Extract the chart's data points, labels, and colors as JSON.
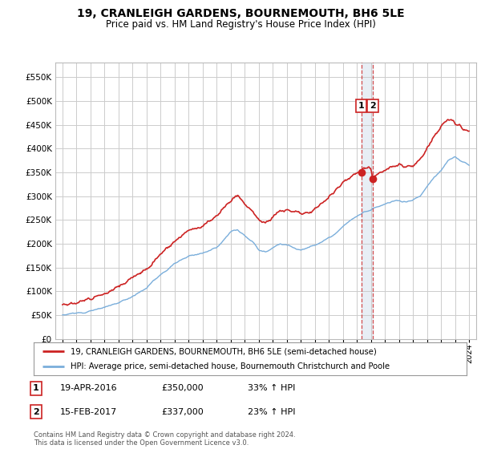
{
  "title": "19, CRANLEIGH GARDENS, BOURNEMOUTH, BH6 5LE",
  "subtitle": "Price paid vs. HM Land Registry's House Price Index (HPI)",
  "legend_line1": "19, CRANLEIGH GARDENS, BOURNEMOUTH, BH6 5LE (semi-detached house)",
  "legend_line2": "HPI: Average price, semi-detached house, Bournemouth Christchurch and Poole",
  "footnote": "Contains HM Land Registry data © Crown copyright and database right 2024.\nThis data is licensed under the Open Government Licence v3.0.",
  "hpi_color": "#7aaedb",
  "price_color": "#cc2222",
  "marker_color": "#cc2222",
  "vshade_color": "#e8eef5",
  "sale1": {
    "date_x": 2016.3,
    "price": 350000,
    "label": "1",
    "label_date": "19-APR-2016",
    "pct": "33% ↑ HPI"
  },
  "sale2": {
    "date_x": 2017.12,
    "price": 337000,
    "label": "2",
    "label_date": "15-FEB-2017",
    "pct": "23% ↑ HPI"
  },
  "ylim": [
    0,
    580000
  ],
  "yticks": [
    0,
    50000,
    100000,
    150000,
    200000,
    250000,
    300000,
    350000,
    400000,
    450000,
    500000,
    550000
  ],
  "xlim": [
    1994.5,
    2024.5
  ],
  "xticks": [
    1995,
    1996,
    1997,
    1998,
    1999,
    2000,
    2001,
    2002,
    2003,
    2004,
    2005,
    2006,
    2007,
    2008,
    2009,
    2010,
    2011,
    2012,
    2013,
    2014,
    2015,
    2016,
    2017,
    2018,
    2019,
    2020,
    2021,
    2022,
    2023,
    2024
  ],
  "background_color": "#ffffff",
  "grid_color": "#cccccc"
}
